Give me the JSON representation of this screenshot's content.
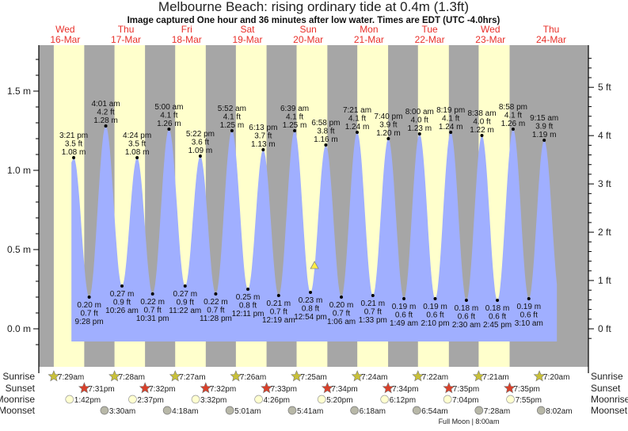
{
  "chart_data": {
    "type": "area",
    "title": "Melbourne Beach: rising  ordinary tide at 0.4m (1.3ft)",
    "subtitle": "Image captured One hour and 36 minutes after low water. Times are EDT (UTC -4.0hrs)",
    "left_axis": {
      "unit": "m",
      "range": [
        -0.1,
        1.8
      ],
      "ticks": [
        "0.0 m",
        "0.5 m",
        "1.0 m",
        "1.5 m"
      ],
      "tick_values": [
        0,
        0.5,
        1.0,
        1.5
      ]
    },
    "right_axis": {
      "unit": "ft",
      "ticks": [
        "0 ft",
        "1 ft",
        "2 ft",
        "3 ft",
        "4 ft",
        "5 ft"
      ],
      "tick_values": [
        0,
        1,
        2,
        3,
        4,
        5
      ]
    },
    "days": [
      {
        "name": "Wed",
        "date": "16-Mar"
      },
      {
        "name": "Thu",
        "date": "17-Mar"
      },
      {
        "name": "Fri",
        "date": "18-Mar"
      },
      {
        "name": "Sat",
        "date": "19-Mar"
      },
      {
        "name": "Sun",
        "date": "20-Mar"
      },
      {
        "name": "Mon",
        "date": "21-Mar"
      },
      {
        "name": "Tue",
        "date": "22-Mar"
      },
      {
        "name": "Wed",
        "date": "23-Mar"
      },
      {
        "name": "Thu",
        "date": "24-Mar"
      }
    ],
    "tides": [
      {
        "type": "high",
        "hour": 15.35,
        "time": "3:21 pm",
        "ft": "3.5 ft",
        "m": 1.08,
        "m_label": "1.08 m"
      },
      {
        "type": "low",
        "hour": 21.47,
        "time": "9:28 pm",
        "ft": "0.7 ft",
        "m": 0.2,
        "m_label": "0.20 m"
      },
      {
        "type": "high",
        "hour": 28.02,
        "time": "4:01 am",
        "ft": "4.2 ft",
        "m": 1.28,
        "m_label": "1.28 m"
      },
      {
        "type": "low",
        "hour": 34.43,
        "time": "10:26 am",
        "ft": "0.9 ft",
        "m": 0.27,
        "m_label": "0.27 m"
      },
      {
        "type": "high",
        "hour": 40.4,
        "time": "4:24 pm",
        "ft": "3.5 ft",
        "m": 1.08,
        "m_label": "1.08 m"
      },
      {
        "type": "low",
        "hour": 46.52,
        "time": "10:31 pm",
        "ft": "0.7 ft",
        "m": 0.22,
        "m_label": "0.22 m"
      },
      {
        "type": "high",
        "hour": 53.0,
        "time": "5:00 am",
        "ft": "4.1 ft",
        "m": 1.26,
        "m_label": "1.26 m"
      },
      {
        "type": "low",
        "hour": 59.37,
        "time": "11:22 am",
        "ft": "0.9 ft",
        "m": 0.27,
        "m_label": "0.27 m"
      },
      {
        "type": "high",
        "hour": 65.37,
        "time": "5:22 pm",
        "ft": "3.6 ft",
        "m": 1.09,
        "m_label": "1.09 m"
      },
      {
        "type": "low",
        "hour": 71.47,
        "time": "11:28 pm",
        "ft": "0.7 ft",
        "m": 0.22,
        "m_label": "0.22 m"
      },
      {
        "type": "high",
        "hour": 77.87,
        "time": "5:52 am",
        "ft": "4.1 ft",
        "m": 1.25,
        "m_label": "1.25 m"
      },
      {
        "type": "low",
        "hour": 84.18,
        "time": "12:11 pm",
        "ft": "0.8 ft",
        "m": 0.25,
        "m_label": "0.25 m"
      },
      {
        "type": "high",
        "hour": 90.22,
        "time": "6:13 pm",
        "ft": "3.7 ft",
        "m": 1.13,
        "m_label": "1.13 m"
      },
      {
        "type": "low",
        "hour": 96.32,
        "time": "12:19 am",
        "ft": "0.7 ft",
        "m": 0.21,
        "m_label": "0.21 m"
      },
      {
        "type": "high",
        "hour": 102.65,
        "time": "6:39 am",
        "ft": "4.1 ft",
        "m": 1.25,
        "m_label": "1.25 m"
      },
      {
        "type": "low",
        "hour": 108.9,
        "time": "12:54 pm",
        "ft": "0.8 ft",
        "m": 0.23,
        "m_label": "0.23 m"
      },
      {
        "type": "high",
        "hour": 114.97,
        "time": "6:58 pm",
        "ft": "3.8 ft",
        "m": 1.16,
        "m_label": "1.16 m"
      },
      {
        "type": "low",
        "hour": 121.1,
        "time": "1:06 am",
        "ft": "0.7 ft",
        "m": 0.2,
        "m_label": "0.20 m"
      },
      {
        "type": "high",
        "hour": 127.35,
        "time": "7:21 am",
        "ft": "4.1 ft",
        "m": 1.24,
        "m_label": "1.24 m"
      },
      {
        "type": "low",
        "hour": 133.55,
        "time": "1:33 pm",
        "ft": "0.7 ft",
        "m": 0.21,
        "m_label": "0.21 m"
      },
      {
        "type": "high",
        "hour": 139.67,
        "time": "7:40 pm",
        "ft": "3.9 ft",
        "m": 1.2,
        "m_label": "1.20 m"
      },
      {
        "type": "low",
        "hour": 145.82,
        "time": "1:49 am",
        "ft": "0.6 ft",
        "m": 0.19,
        "m_label": "0.19 m"
      },
      {
        "type": "high",
        "hour": 152.0,
        "time": "8:00 am",
        "ft": "4.0 ft",
        "m": 1.23,
        "m_label": "1.23 m"
      },
      {
        "type": "low",
        "hour": 158.17,
        "time": "2:10 pm",
        "ft": "0.6 ft",
        "m": 0.19,
        "m_label": "0.19 m"
      },
      {
        "type": "high",
        "hour": 164.32,
        "time": "8:19 pm",
        "ft": "4.1 ft",
        "m": 1.24,
        "m_label": "1.24 m"
      },
      {
        "type": "low",
        "hour": 170.5,
        "time": "2:30 am",
        "ft": "0.6 ft",
        "m": 0.18,
        "m_label": "0.18 m"
      },
      {
        "type": "high",
        "hour": 176.63,
        "time": "8:38 am",
        "ft": "4.0 ft",
        "m": 1.22,
        "m_label": "1.22 m"
      },
      {
        "type": "low",
        "hour": 182.75,
        "time": "2:45 pm",
        "ft": "0.6 ft",
        "m": 0.18,
        "m_label": "0.18 m"
      },
      {
        "type": "high",
        "hour": 188.97,
        "time": "8:58 pm",
        "ft": "4.1 ft",
        "m": 1.26,
        "m_label": "1.26 m"
      },
      {
        "type": "low",
        "hour": 195.17,
        "time": "3:10 am",
        "ft": "0.6 ft",
        "m": 0.19,
        "m_label": "0.19 m"
      },
      {
        "type": "high",
        "hour": 201.25,
        "time": "9:15 am",
        "ft": "3.9 ft",
        "m": 1.19,
        "m_label": "1.19 m"
      }
    ],
    "current": {
      "hour": 110.5,
      "m": 0.4
    },
    "daylight": [
      [
        7.48,
        19.52
      ],
      [
        31.47,
        43.53
      ],
      [
        55.45,
        67.53
      ],
      [
        79.43,
        91.55
      ],
      [
        103.42,
        115.57
      ],
      [
        127.4,
        139.57
      ],
      [
        151.37,
        163.58
      ],
      [
        175.35,
        187.58
      ]
    ],
    "rows": {
      "labels": {
        "sunrise": "Sunrise",
        "sunset": "Sunset",
        "moonrise": "Moonrise",
        "moonset": "Moonset"
      },
      "sunrise": [
        {
          "hour": 7.48,
          "t": "7:29am"
        },
        {
          "hour": 31.47,
          "t": "7:28am"
        },
        {
          "hour": 55.45,
          "t": "7:27am"
        },
        {
          "hour": 79.43,
          "t": "7:26am"
        },
        {
          "hour": 103.42,
          "t": "7:25am"
        },
        {
          "hour": 127.4,
          "t": "7:24am"
        },
        {
          "hour": 151.37,
          "t": "7:22am"
        },
        {
          "hour": 175.35,
          "t": "7:21am"
        },
        {
          "hour": 199.33,
          "t": "7:20am"
        }
      ],
      "sunset": [
        {
          "hour": 19.52,
          "t": "7:31pm"
        },
        {
          "hour": 43.53,
          "t": "7:32pm"
        },
        {
          "hour": 67.53,
          "t": "7:32pm"
        },
        {
          "hour": 91.55,
          "t": "7:33pm"
        },
        {
          "hour": 115.57,
          "t": "7:34pm"
        },
        {
          "hour": 139.57,
          "t": "7:34pm"
        },
        {
          "hour": 163.58,
          "t": "7:35pm"
        },
        {
          "hour": 187.58,
          "t": "7:35pm"
        }
      ],
      "moonrise": [
        {
          "hour": 13.7,
          "t": "1:42pm"
        },
        {
          "hour": 38.62,
          "t": "2:37pm"
        },
        {
          "hour": 63.53,
          "t": "3:32pm"
        },
        {
          "hour": 88.43,
          "t": "4:26pm"
        },
        {
          "hour": 113.33,
          "t": "5:20pm"
        },
        {
          "hour": 138.2,
          "t": "6:12pm"
        },
        {
          "hour": 163.07,
          "t": "7:04pm"
        },
        {
          "hour": 187.92,
          "t": "7:55pm"
        }
      ],
      "moonset": [
        {
          "hour": 27.5,
          "t": "3:30am"
        },
        {
          "hour": 52.3,
          "t": "4:18am"
        },
        {
          "hour": 77.02,
          "t": "5:01am"
        },
        {
          "hour": 101.68,
          "t": "5:41am"
        },
        {
          "hour": 126.3,
          "t": "6:18am"
        },
        {
          "hour": 150.9,
          "t": "6:54am"
        },
        {
          "hour": 175.47,
          "t": "7:28am"
        },
        {
          "hour": 200.03,
          "t": "8:02am"
        }
      ]
    },
    "moon_phase": "Full Moon | 8:00am",
    "colors": {
      "night": "#a6a6a6",
      "day": "#ffffcc",
      "water": "#a0afff",
      "day_label": "#e8302a",
      "sun_rise": "#c8c03a",
      "sun_set": "#d8402a",
      "moon_rise": "#ffffd0",
      "moon_set": "#b8b8a8"
    }
  }
}
